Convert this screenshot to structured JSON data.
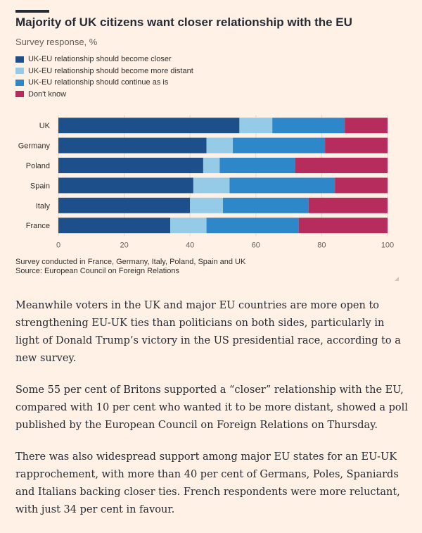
{
  "header": {
    "title": "Majority of UK citizens want closer relationship with the EU",
    "subtitle": "Survey response, %"
  },
  "chart_data": {
    "type": "bar",
    "orientation": "horizontal",
    "stacked": true,
    "title": "Majority of UK citizens want closer relationship with the EU",
    "subtitle": "Survey response, %",
    "xlabel": "",
    "ylabel": "",
    "xlim": [
      0,
      100
    ],
    "xticks": [
      0,
      20,
      40,
      60,
      80,
      100
    ],
    "grid": true,
    "legend_position": "top-left",
    "categories": [
      "UK",
      "Germany",
      "Poland",
      "Spain",
      "Italy",
      "France"
    ],
    "series": [
      {
        "name": "UK-EU relationship should become closer",
        "color": "#1d4f8a",
        "values": [
          55,
          45,
          44,
          41,
          40,
          34
        ]
      },
      {
        "name": "UK-EU relationship should become more distant",
        "color": "#95cbe6",
        "values": [
          10,
          8,
          5,
          11,
          10,
          11
        ]
      },
      {
        "name": "UK-EU relationship should continue as is",
        "color": "#2e87c8",
        "values": [
          22,
          28,
          23,
          32,
          26,
          28
        ]
      },
      {
        "name": "Don't know",
        "color": "#b52c5d",
        "values": [
          13,
          19,
          28,
          16,
          24,
          27
        ]
      }
    ]
  },
  "footnote": {
    "line1": "Survey conducted in France, Germany, Italy, Poland, Spain and UK",
    "line2": "Source: European Council on Foreign Relations"
  },
  "article": {
    "paragraphs": [
      "Meanwhile voters in the UK and major EU countries are more open to strengthening EU-UK ties than politicians on both sides, particularly in light of Donald Trump’s victory in the US presidential race, according to a new survey.",
      "Some 55 per cent of Britons supported a “closer” relationship with the EU, compared with 10 per cent who wanted it to be more distant, showed a poll published by the European Council on Foreign Relations on Thursday.",
      "There was also widespread support among major EU states for an EU-UK rapprochement, with more than 40 per cent of Germans, Poles, Spaniards and Italians backing closer ties. French respondents were more reluctant, with just 34 per cent in favour."
    ]
  }
}
